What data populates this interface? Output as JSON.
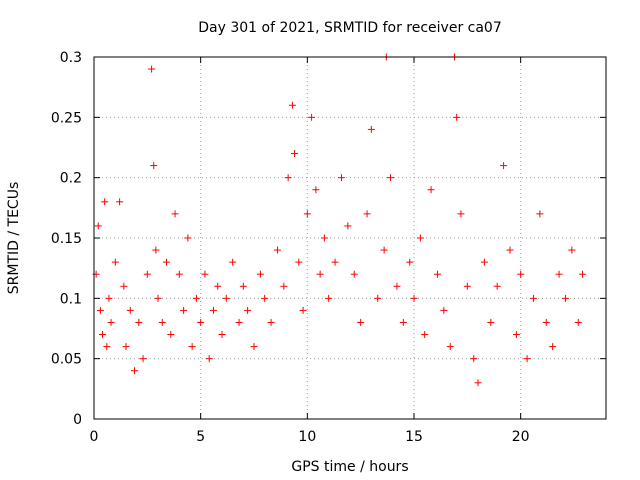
{
  "chart_data": {
    "type": "scatter",
    "title": "Day 301 of 2021, SRMTID for receiver ca07",
    "xlabel": "GPS time / hours",
    "ylabel": "SRMTID / TECUs",
    "xlim": [
      0,
      24
    ],
    "ylim": [
      0,
      0.3
    ],
    "xticks": [
      "0",
      "5",
      "10",
      "15",
      "20"
    ],
    "yticks": [
      "0",
      "0.05",
      "0.1",
      "0.15",
      "0.2",
      "0.25",
      "0.3"
    ],
    "grid": true,
    "marker": "plus",
    "color": "#ff0000",
    "series": [
      {
        "name": "SRMTID",
        "x": [
          0.1,
          0.2,
          0.3,
          0.4,
          0.5,
          0.6,
          0.7,
          0.8,
          1.0,
          1.2,
          1.4,
          1.5,
          1.7,
          1.9,
          2.1,
          2.3,
          2.5,
          2.7,
          2.8,
          2.9,
          3.0,
          3.2,
          3.4,
          3.6,
          3.8,
          4.0,
          4.2,
          4.4,
          4.6,
          4.8,
          5.0,
          5.2,
          5.4,
          5.6,
          5.8,
          6.0,
          6.2,
          6.5,
          6.8,
          7.0,
          7.2,
          7.5,
          7.8,
          8.0,
          8.3,
          8.6,
          8.9,
          9.1,
          9.3,
          9.4,
          9.6,
          9.8,
          10.0,
          10.2,
          10.4,
          10.6,
          10.8,
          11.0,
          11.3,
          11.6,
          11.9,
          12.2,
          12.5,
          12.8,
          13.0,
          13.3,
          13.6,
          13.7,
          13.9,
          14.2,
          14.5,
          14.8,
          15.0,
          15.3,
          15.5,
          15.8,
          16.1,
          16.4,
          16.7,
          16.9,
          17.0,
          17.2,
          17.5,
          17.8,
          18.0,
          18.3,
          18.6,
          18.9,
          19.2,
          19.5,
          19.8,
          20.0,
          20.3,
          20.6,
          20.9,
          21.2,
          21.5,
          21.8,
          22.1,
          22.4,
          22.7,
          22.9
        ],
        "y": [
          0.12,
          0.16,
          0.09,
          0.07,
          0.18,
          0.06,
          0.1,
          0.08,
          0.13,
          0.18,
          0.11,
          0.06,
          0.09,
          0.04,
          0.08,
          0.05,
          0.12,
          0.29,
          0.21,
          0.14,
          0.1,
          0.08,
          0.13,
          0.07,
          0.17,
          0.12,
          0.09,
          0.15,
          0.06,
          0.1,
          0.08,
          0.12,
          0.05,
          0.09,
          0.11,
          0.07,
          0.1,
          0.13,
          0.08,
          0.11,
          0.09,
          0.06,
          0.12,
          0.1,
          0.08,
          0.14,
          0.11,
          0.2,
          0.26,
          0.22,
          0.13,
          0.09,
          0.17,
          0.25,
          0.19,
          0.12,
          0.15,
          0.1,
          0.13,
          0.2,
          0.16,
          0.12,
          0.08,
          0.17,
          0.24,
          0.1,
          0.14,
          0.3,
          0.2,
          0.11,
          0.08,
          0.13,
          0.1,
          0.15,
          0.07,
          0.19,
          0.12,
          0.09,
          0.06,
          0.3,
          0.25,
          0.17,
          0.11,
          0.05,
          0.03,
          0.13,
          0.08,
          0.11,
          0.21,
          0.14,
          0.07,
          0.12,
          0.05,
          0.1,
          0.17,
          0.08,
          0.06,
          0.12,
          0.1,
          0.14,
          0.08,
          0.12
        ]
      }
    ]
  }
}
